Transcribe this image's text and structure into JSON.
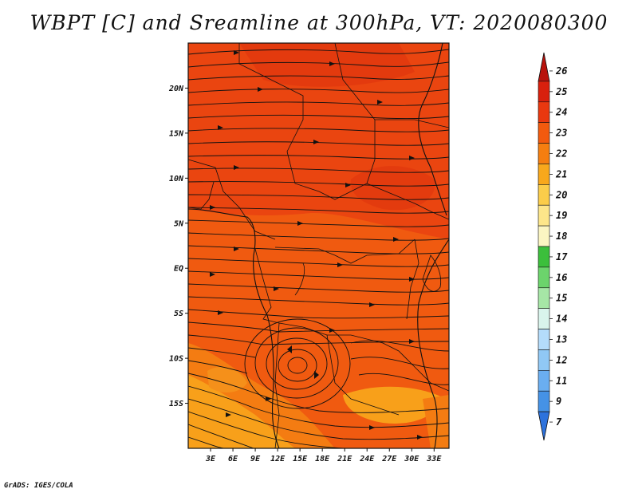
{
  "title": "WBPT [C] and Sreamline at 300hPa, VT: 2020080300",
  "credit": "GrADS: IGES/COLA",
  "map": {
    "lat_ticks": [
      "20N",
      "15N",
      "10N",
      "5N",
      "EQ",
      "5S",
      "10S",
      "15S"
    ],
    "lat_values": [
      20,
      15,
      10,
      5,
      0,
      -5,
      -10,
      -15
    ],
    "lon_ticks": [
      "3E",
      "6E",
      "9E",
      "12E",
      "15E",
      "18E",
      "21E",
      "24E",
      "27E",
      "30E",
      "33E"
    ],
    "lon_values": [
      3,
      6,
      9,
      12,
      15,
      18,
      21,
      24,
      27,
      30,
      33
    ],
    "lon_range": [
      0,
      35
    ],
    "lat_range": [
      -20,
      25
    ]
  },
  "colorbar": {
    "labels": [
      "26",
      "25",
      "24",
      "23",
      "22",
      "21",
      "20",
      "19",
      "18",
      "17",
      "16",
      "15",
      "14",
      "13",
      "12",
      "11",
      "9",
      "7"
    ],
    "colors": [
      "#b8120c",
      "#d8200d",
      "#e9380f",
      "#f25a0e",
      "#f57e10",
      "#f8a81c",
      "#fbcd4a",
      "#fde68a",
      "#fbf5c2",
      "#3cbf3c",
      "#6cd46c",
      "#a6e6a6",
      "#d9f4ec",
      "#b4dcfb",
      "#90c8f5",
      "#6aaef0",
      "#4592e6",
      "#2d72dc"
    ]
  }
}
